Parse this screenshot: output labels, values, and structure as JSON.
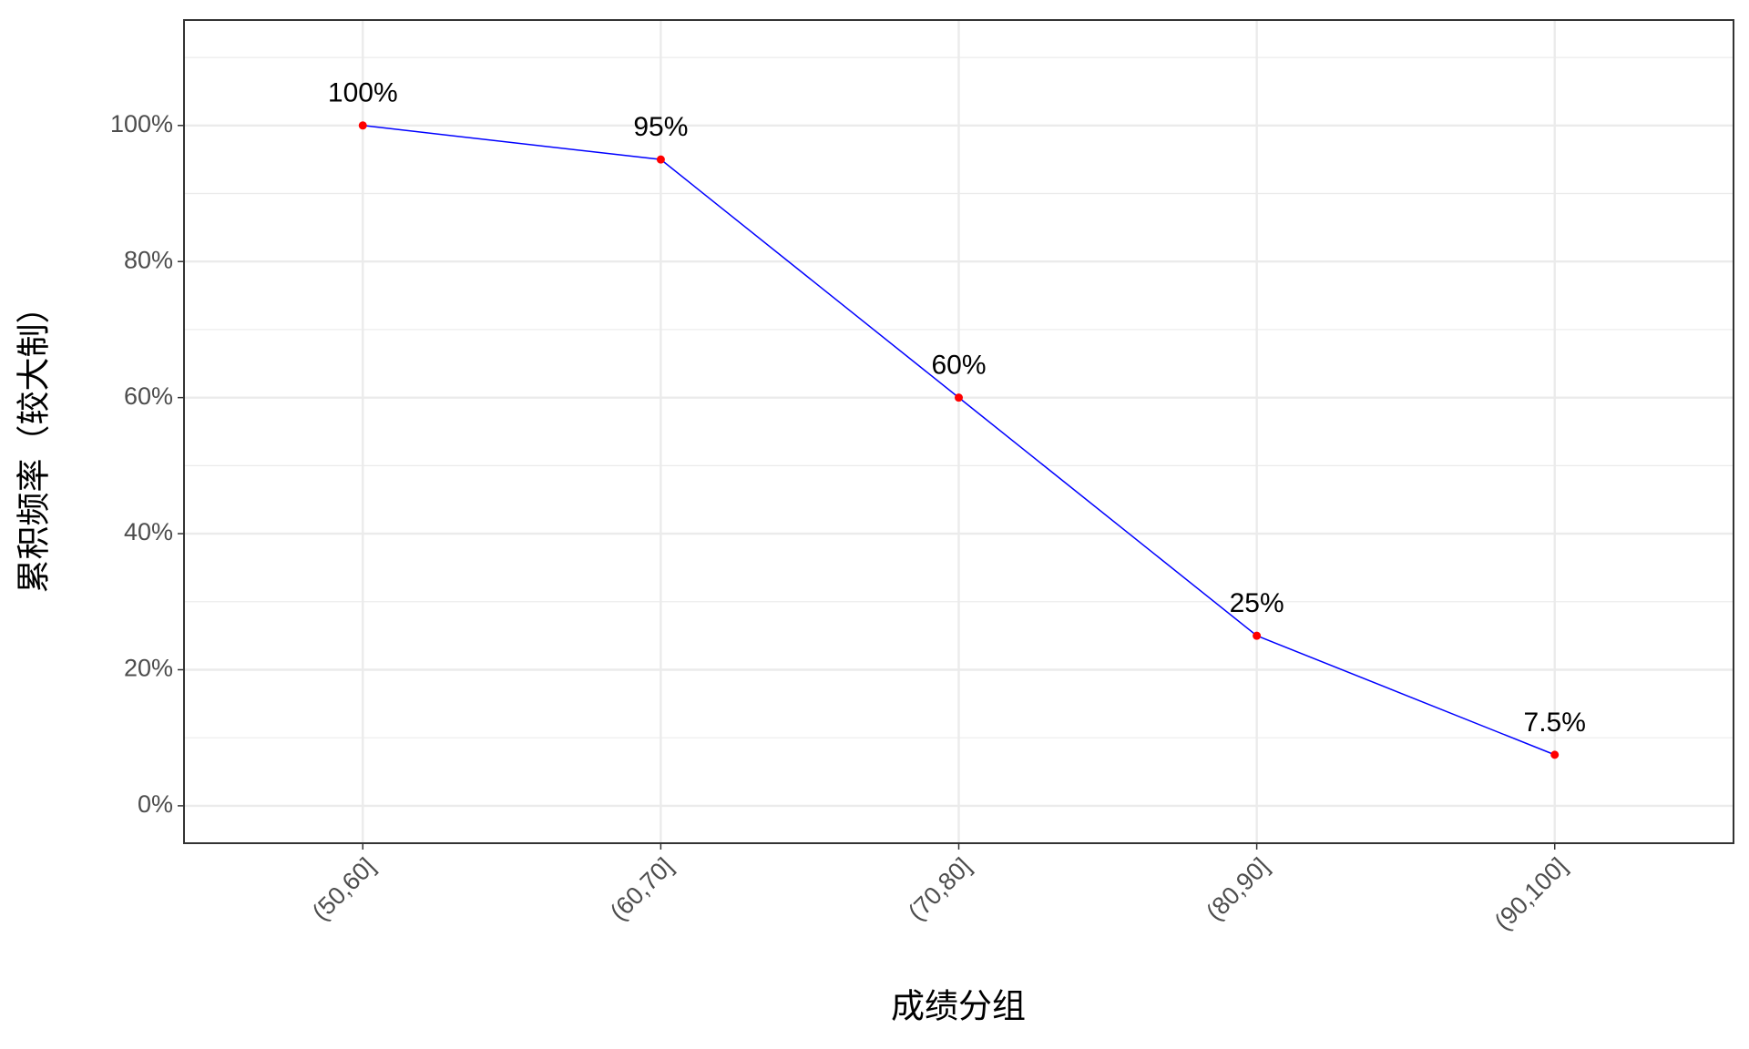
{
  "chart_data": {
    "type": "line",
    "x_label": "成绩分组",
    "y_label": "累积频率（较大制）",
    "categories": [
      "(50,60]",
      "(60,70]",
      "(70,80]",
      "(80,90]",
      "(90,100]"
    ],
    "values": [
      100,
      95,
      60,
      25,
      7.5
    ],
    "value_labels": [
      "100%",
      "95%",
      "60%",
      "25%",
      "7.5%"
    ],
    "line_color": "#0000ff",
    "point_color": "#ff0000",
    "ylim": [
      -5.5,
      115.5
    ],
    "yticks": [
      {
        "value": 0,
        "label": "0%"
      },
      {
        "value": 20,
        "label": "20%"
      },
      {
        "value": 40,
        "label": "40%"
      },
      {
        "value": 60,
        "label": "60%"
      },
      {
        "value": 80,
        "label": "80%"
      },
      {
        "value": 100,
        "label": "100%"
      }
    ],
    "grid": true
  }
}
